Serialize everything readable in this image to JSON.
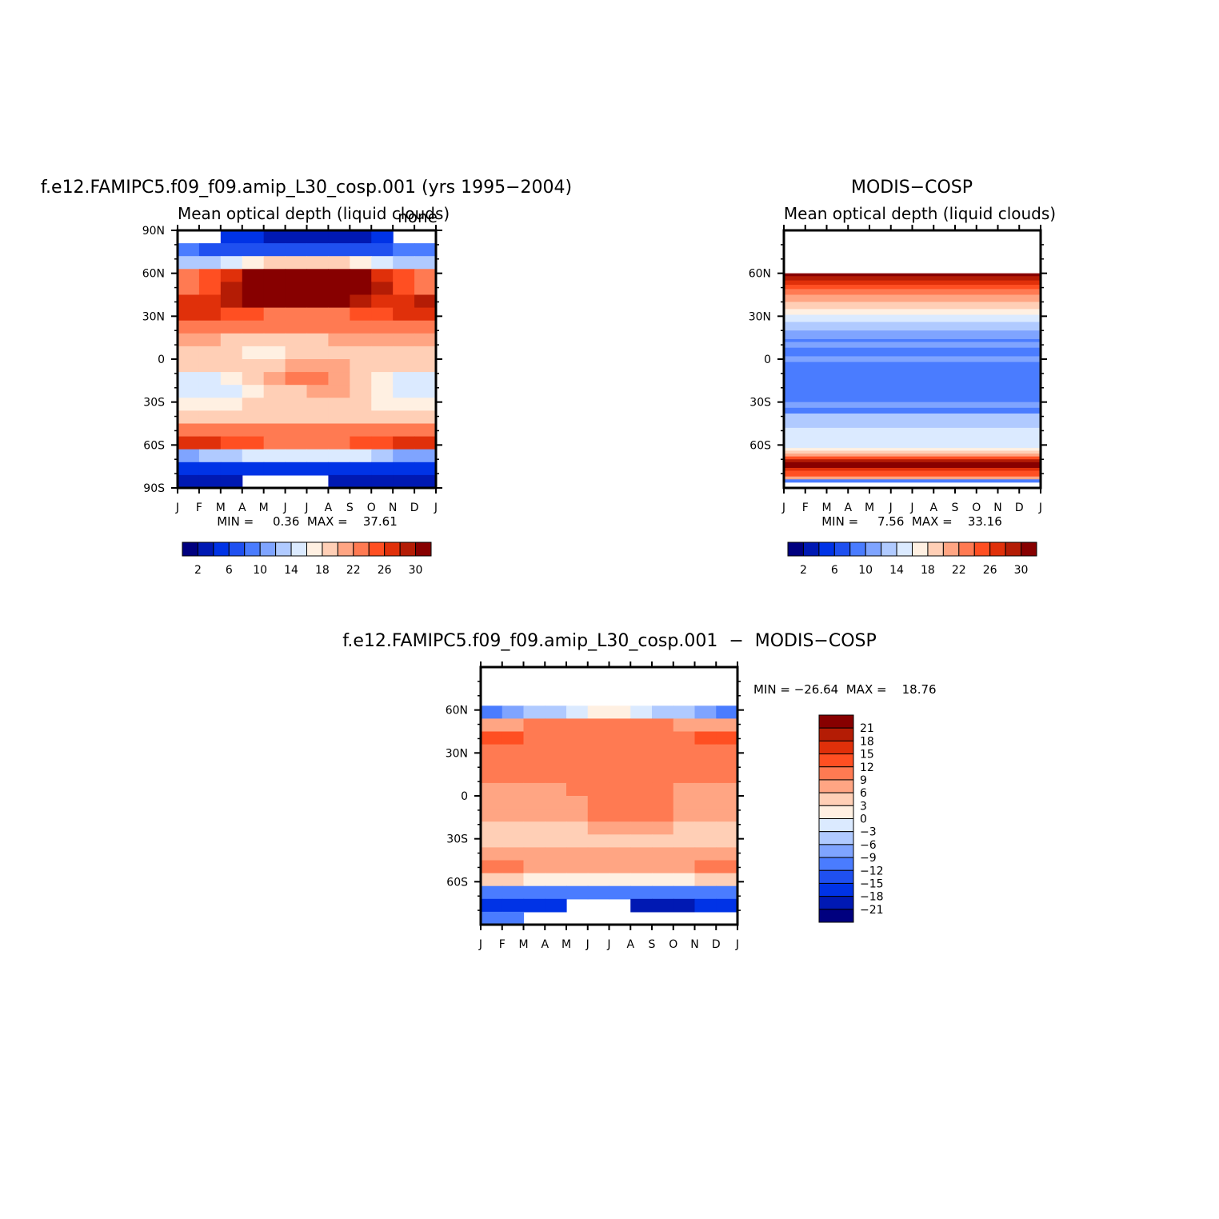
{
  "chart_data": [
    {
      "type": "heatmap",
      "id": "model",
      "title": "f.e12.FAMIPC5.f09_f09.amip_L30_cosp.001 (yrs 1995−2004)",
      "subtitle": "Mean optical depth (liquid clouds)",
      "units_label": "none",
      "xlabel": "",
      "ylabel": "",
      "x_ticks": [
        "J",
        "F",
        "M",
        "A",
        "M",
        "J",
        "J",
        "A",
        "S",
        "O",
        "N",
        "D",
        "J"
      ],
      "y_ticks": [
        "90N",
        "60N",
        "30N",
        "0",
        "30S",
        "60S",
        "90S"
      ],
      "ylim": [
        -90,
        90
      ],
      "stats_text": "MIN =     0.36  MAX =    37.61",
      "min": 0.36,
      "max": 37.61,
      "colorbar": {
        "orientation": "horizontal",
        "labels": [
          "2",
          "6",
          "10",
          "14",
          "18",
          "22",
          "26",
          "30"
        ],
        "levels": [
          2,
          4,
          6,
          8,
          10,
          12,
          14,
          16,
          18,
          20,
          22,
          24,
          26,
          28,
          30
        ],
        "colors": [
          "#00007f",
          "#0019b3",
          "#0033e6",
          "#1f50f0",
          "#4a7cff",
          "#7fa4ff",
          "#b0caff",
          "#dbeaff",
          "#fff0e2",
          "#ffcfb6",
          "#ffa583",
          "#ff7a52",
          "#ff4f22",
          "#e0300a",
          "#b41c05",
          "#870000"
        ]
      },
      "band_values": [
        [
          null,
          null,
          4,
          4,
          2,
          2,
          2,
          2,
          2,
          4,
          null,
          null
        ],
        [
          8,
          6,
          6,
          6,
          6,
          6,
          6,
          6,
          6,
          6,
          8,
          8
        ],
        [
          12,
          12,
          14,
          16,
          18,
          18,
          18,
          18,
          16,
          14,
          12,
          12
        ],
        [
          22,
          24,
          26,
          30,
          33,
          36,
          36,
          34,
          30,
          26,
          24,
          22
        ],
        [
          22,
          24,
          28,
          32,
          36,
          37,
          37,
          36,
          32,
          28,
          24,
          22
        ],
        [
          26,
          26,
          28,
          30,
          32,
          32,
          32,
          30,
          28,
          26,
          26,
          28
        ],
        [
          26,
          26,
          24,
          24,
          22,
          22,
          22,
          22,
          24,
          24,
          26,
          27
        ],
        [
          22,
          22,
          22,
          22,
          22,
          22,
          22,
          22,
          22,
          22,
          22,
          22
        ],
        [
          20,
          20,
          18,
          18,
          18,
          18,
          18,
          20,
          20,
          20,
          20,
          20
        ],
        [
          18,
          18,
          18,
          16,
          16,
          18,
          18,
          18,
          18,
          18,
          18,
          18
        ],
        [
          18,
          18,
          18,
          18,
          18,
          20,
          20,
          20,
          18,
          18,
          18,
          18
        ],
        [
          14,
          14,
          16,
          18,
          20,
          22,
          22,
          20,
          18,
          16,
          14,
          14
        ],
        [
          14,
          14,
          14,
          16,
          18,
          18,
          20,
          20,
          18,
          16,
          14,
          14
        ],
        [
          16,
          16,
          16,
          18,
          18,
          18,
          18,
          18,
          18,
          16,
          16,
          16
        ],
        [
          18,
          18,
          18,
          18,
          18,
          18,
          18,
          18,
          18,
          18,
          18,
          18
        ],
        [
          22,
          22,
          22,
          22,
          22,
          22,
          22,
          22,
          22,
          22,
          22,
          22
        ],
        [
          26,
          26,
          24,
          24,
          22,
          22,
          22,
          22,
          24,
          24,
          26,
          26
        ],
        [
          10,
          12,
          12,
          14,
          14,
          14,
          14,
          14,
          14,
          12,
          10,
          10
        ],
        [
          4,
          4,
          4,
          4,
          4,
          4,
          4,
          4,
          4,
          4,
          4,
          4
        ],
        [
          2,
          2,
          2,
          null,
          null,
          null,
          null,
          2,
          2,
          2,
          2,
          2
        ]
      ]
    },
    {
      "type": "heatmap",
      "id": "obs",
      "title": "MODIS−COSP",
      "subtitle": "Mean optical depth (liquid clouds)",
      "xlabel": "",
      "ylabel": "",
      "x_ticks": [
        "J",
        "F",
        "M",
        "A",
        "M",
        "J",
        "J",
        "A",
        "S",
        "O",
        "N",
        "D",
        "J"
      ],
      "y_ticks": [
        "60N",
        "30N",
        "0",
        "30S",
        "60S"
      ],
      "ylim": [
        -90,
        90
      ],
      "stats_text": "MIN =     7.56  MAX =    33.16",
      "min": 7.56,
      "max": 33.16,
      "colorbar": {
        "orientation": "horizontal",
        "labels": [
          "2",
          "6",
          "10",
          "14",
          "18",
          "22",
          "26",
          "30"
        ],
        "levels": [
          2,
          4,
          6,
          8,
          10,
          12,
          14,
          16,
          18,
          20,
          22,
          24,
          26,
          28,
          30
        ],
        "colors": [
          "#00007f",
          "#0019b3",
          "#0033e6",
          "#1f50f0",
          "#4a7cff",
          "#7fa4ff",
          "#b0caff",
          "#dbeaff",
          "#fff0e2",
          "#ffcfb6",
          "#ffa583",
          "#ff7a52",
          "#ff4f22",
          "#e0300a",
          "#b41c05",
          "#870000"
        ]
      },
      "lat_bands": [
        {
          "lat_top": 90,
          "lat_bottom": 60,
          "value": null
        },
        {
          "lat_top": 60,
          "lat_bottom": 58,
          "value": 32
        },
        {
          "lat_top": 58,
          "lat_bottom": 55,
          "value": 29
        },
        {
          "lat_top": 55,
          "lat_bottom": 52,
          "value": 27
        },
        {
          "lat_top": 52,
          "lat_bottom": 49,
          "value": 25
        },
        {
          "lat_top": 49,
          "lat_bottom": 45,
          "value": 23
        },
        {
          "lat_top": 45,
          "lat_bottom": 40,
          "value": 21
        },
        {
          "lat_top": 40,
          "lat_bottom": 35,
          "value": 18
        },
        {
          "lat_top": 35,
          "lat_bottom": 31,
          "value": 16
        },
        {
          "lat_top": 31,
          "lat_bottom": 26,
          "value": 14
        },
        {
          "lat_top": 26,
          "lat_bottom": 20,
          "value": 12
        },
        {
          "lat_top": 20,
          "lat_bottom": 14,
          "value": 10
        },
        {
          "lat_top": 14,
          "lat_bottom": 12,
          "value": 9
        },
        {
          "lat_top": 12,
          "lat_bottom": 8,
          "value": 10
        },
        {
          "lat_top": 8,
          "lat_bottom": 2,
          "value": 9
        },
        {
          "lat_top": 2,
          "lat_bottom": -2,
          "value": 10
        },
        {
          "lat_top": -2,
          "lat_bottom": -30,
          "value": 9
        },
        {
          "lat_top": -30,
          "lat_bottom": -34,
          "value": 10
        },
        {
          "lat_top": -34,
          "lat_bottom": -38,
          "value": 9
        },
        {
          "lat_top": -38,
          "lat_bottom": -48,
          "value": 12
        },
        {
          "lat_top": -48,
          "lat_bottom": -62,
          "value": 14
        },
        {
          "lat_top": -62,
          "lat_bottom": -64,
          "value": 16
        },
        {
          "lat_top": -64,
          "lat_bottom": -66,
          "value": 18
        },
        {
          "lat_top": -66,
          "lat_bottom": -68,
          "value": 20
        },
        {
          "lat_top": -68,
          "lat_bottom": -70,
          "value": 24
        },
        {
          "lat_top": -70,
          "lat_bottom": -72,
          "value": 28
        },
        {
          "lat_top": -72,
          "lat_bottom": -76,
          "value": 31
        },
        {
          "lat_top": -76,
          "lat_bottom": -78,
          "value": 27
        },
        {
          "lat_top": -78,
          "lat_bottom": -82,
          "value": 24
        },
        {
          "lat_top": -82,
          "lat_bottom": -84,
          "value": 20
        },
        {
          "lat_top": -84,
          "lat_bottom": -86,
          "value": 8
        },
        {
          "lat_top": -86,
          "lat_bottom": -90,
          "value": null
        }
      ]
    },
    {
      "type": "heatmap",
      "id": "diff",
      "title": "f.e12.FAMIPC5.f09_f09.amip_L30_cosp.001  −  MODIS−COSP",
      "xlabel": "",
      "ylabel": "",
      "x_ticks": [
        "J",
        "F",
        "M",
        "A",
        "M",
        "J",
        "J",
        "A",
        "S",
        "O",
        "N",
        "D",
        "J"
      ],
      "y_ticks": [
        "60N",
        "30N",
        "0",
        "30S",
        "60S"
      ],
      "ylim": [
        -90,
        90
      ],
      "stats_text": "MIN = −26.64  MAX =    18.76",
      "min": -26.64,
      "max": 18.76,
      "colorbar": {
        "orientation": "vertical",
        "labels": [
          "21",
          "18",
          "15",
          "12",
          "9",
          "6",
          "3",
          "0",
          "−3",
          "−6",
          "−9",
          "−12",
          "−15",
          "−18",
          "−21"
        ],
        "levels": [
          -21,
          -18,
          -15,
          -12,
          -9,
          -6,
          -3,
          0,
          3,
          6,
          9,
          12,
          15,
          18,
          21
        ],
        "colors": [
          "#00007f",
          "#0019b3",
          "#0033e6",
          "#1f50f0",
          "#4a7cff",
          "#7fa4ff",
          "#b0caff",
          "#dbeaff",
          "#fff0e2",
          "#ffcfb6",
          "#ffa583",
          "#ff7a52",
          "#ff4f22",
          "#e0300a",
          "#b41c05",
          "#870000"
        ]
      },
      "band_values": [
        [
          null,
          null,
          null,
          null,
          null,
          null,
          null,
          null,
          null,
          null,
          null,
          null
        ],
        [
          null,
          null,
          null,
          null,
          null,
          null,
          null,
          null,
          null,
          null,
          null,
          null
        ],
        [
          null,
          null,
          null,
          null,
          null,
          null,
          null,
          null,
          null,
          null,
          null,
          null
        ],
        [
          -10,
          -8,
          -6,
          -4,
          -2,
          0,
          0,
          -2,
          -4,
          -6,
          -8,
          -10
        ],
        [
          7,
          8,
          9,
          10,
          11,
          11,
          11,
          10,
          9,
          8,
          7,
          7
        ],
        [
          13,
          12,
          11,
          10,
          10,
          10,
          10,
          10,
          10,
          11,
          12,
          13
        ],
        [
          11,
          11,
          10,
          10,
          10,
          10,
          10,
          10,
          10,
          10,
          11,
          11
        ],
        [
          9,
          9,
          9,
          10,
          9,
          9,
          9,
          9,
          9,
          9,
          9,
          9
        ],
        [
          9,
          9,
          9,
          9,
          9,
          10,
          10,
          10,
          10,
          9,
          9,
          9
        ],
        [
          8,
          8,
          8,
          8,
          9,
          10,
          10,
          10,
          9,
          8,
          8,
          8
        ],
        [
          8,
          8,
          8,
          8,
          8,
          10,
          11,
          11,
          10,
          8,
          8,
          8
        ],
        [
          6,
          6,
          6,
          7,
          8,
          9,
          10,
          10,
          9,
          7,
          6,
          6
        ],
        [
          5,
          5,
          5,
          5,
          5,
          6,
          7,
          7,
          6,
          5,
          5,
          5
        ],
        [
          5,
          5,
          5,
          5,
          5,
          5,
          5,
          5,
          5,
          5,
          5,
          5
        ],
        [
          7,
          7,
          7,
          7,
          7,
          7,
          7,
          7,
          7,
          7,
          7,
          7
        ],
        [
          9,
          9,
          8,
          7,
          6,
          6,
          6,
          6,
          7,
          8,
          9,
          9
        ],
        [
          4,
          3,
          2,
          1,
          0,
          0,
          0,
          0,
          1,
          2,
          3,
          4
        ],
        [
          -12,
          -12,
          -12,
          -12,
          -12,
          -12,
          -12,
          -12,
          -12,
          -12,
          -12,
          -12
        ],
        [
          -16,
          -16,
          -16,
          -18,
          null,
          null,
          null,
          -20,
          -20,
          -20,
          -18,
          -16
        ],
        [
          -12,
          -12,
          null,
          null,
          null,
          null,
          null,
          null,
          null,
          null,
          null,
          null
        ]
      ]
    }
  ]
}
